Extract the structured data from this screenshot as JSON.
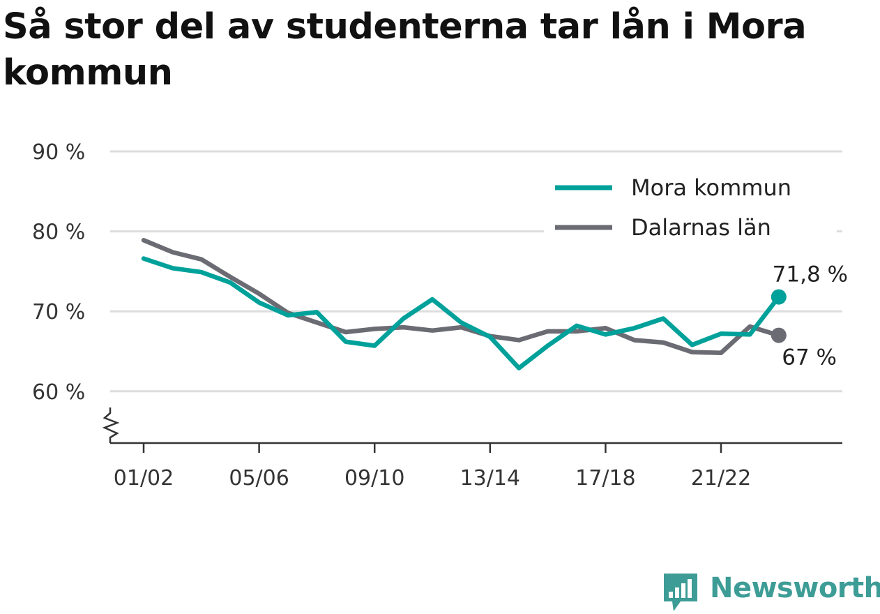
{
  "chart_data": {
    "type": "line",
    "title": "Så stor del av studenterna tar lån i Mora kommun",
    "x": [
      "01/02",
      "02/03",
      "03/04",
      "04/05",
      "05/06",
      "06/07",
      "07/08",
      "08/09",
      "09/10",
      "10/11",
      "11/12",
      "12/13",
      "13/14",
      "14/15",
      "15/16",
      "16/17",
      "17/18",
      "18/19",
      "19/20",
      "20/21",
      "21/22",
      "22/23",
      "23/24"
    ],
    "x_tick_labels": [
      "01/02",
      "05/06",
      "09/10",
      "13/14",
      "17/18",
      "21/22"
    ],
    "y_tick_labels": [
      "90 %",
      "80 %",
      "70 %",
      "60 %"
    ],
    "y_ticks": [
      90,
      80,
      70,
      60
    ],
    "ylim": [
      53.7,
      90
    ],
    "grid": true,
    "legend_position": "top-right",
    "series": [
      {
        "name": "Mora kommun",
        "color": "#00a19a",
        "values": [
          76.6,
          75.4,
          74.9,
          73.6,
          71.1,
          69.5,
          69.9,
          66.2,
          65.7,
          69.1,
          71.5,
          68.6,
          66.8,
          62.9,
          65.7,
          68.2,
          67.1,
          67.9,
          69.1,
          65.8,
          67.2,
          67.1,
          71.8
        ],
        "end_label": "71,8 %"
      },
      {
        "name": "Dalarnas län",
        "color": "#6b6b73",
        "values": [
          78.9,
          77.4,
          76.5,
          74.3,
          72.2,
          69.8,
          68.6,
          67.4,
          67.8,
          68.0,
          67.6,
          68.0,
          66.9,
          66.4,
          67.5,
          67.5,
          67.9,
          66.4,
          66.1,
          64.9,
          64.8,
          68.1,
          67.0
        ],
        "end_label": "67 %"
      }
    ]
  },
  "brand": {
    "name": "Newsworthy",
    "color": "#3d9c96"
  }
}
